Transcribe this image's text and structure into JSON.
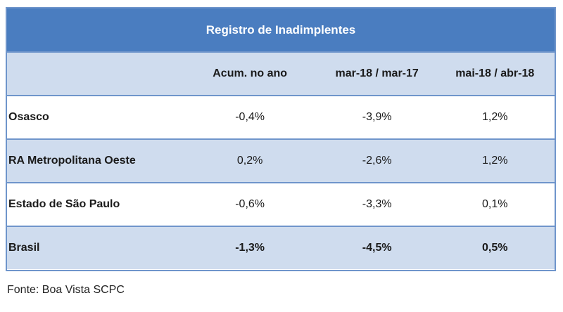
{
  "table": {
    "title": "Registro de Inadimplentes",
    "headers": [
      "",
      "Acum. no ano",
      "mar-18 / mar-17",
      "mai-18 / abr-18"
    ],
    "rows": [
      {
        "region": "Osasco",
        "acum": "-0,4%",
        "yoy": "-3,9%",
        "mom": "1,2%"
      },
      {
        "region": "RA Metropolitana Oeste",
        "acum": "0,2%",
        "yoy": "-2,6%",
        "mom": "1,2%"
      },
      {
        "region": "Estado de São Paulo",
        "acum": "-0,6%",
        "yoy": "-3,3%",
        "mom": "0,1%"
      },
      {
        "region": "Brasil",
        "acum": "-1,3%",
        "yoy": "-4,5%",
        "mom": "0,5%"
      }
    ]
  },
  "footnote": "Fonte: Boa Vista SCPC",
  "colors": {
    "title_bg": "#4a7dc0",
    "shaded_bg": "#cfdcee",
    "border": "#6f95cb"
  }
}
